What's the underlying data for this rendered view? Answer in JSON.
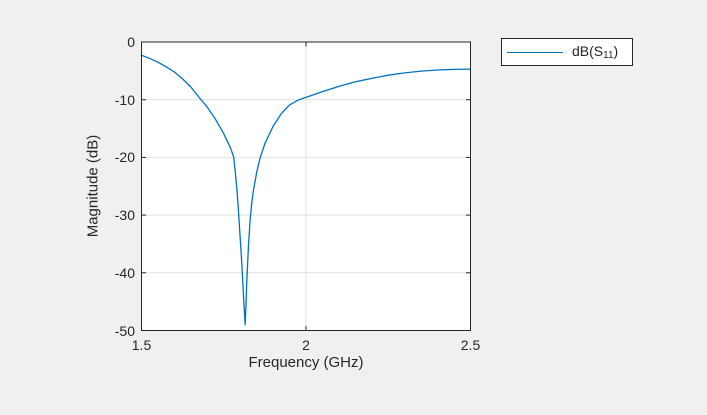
{
  "figure": {
    "kind": "matlab-style-plot"
  },
  "colors": {
    "figure_bg": "#F0F0F0",
    "plot_bg": "#FFFFFF",
    "line": "#0072BD",
    "grid": "#E0E0E0",
    "axis": "#262626",
    "text": "#262626",
    "legend_bg": "#FFFFFF"
  },
  "legend": {
    "label_prefix": "dB(S",
    "label_sub": "11",
    "label_suffix": ")"
  },
  "chart_data": {
    "type": "line",
    "title": "",
    "xlabel": "Frequency (GHz)",
    "ylabel": "Magnitude (dB)",
    "xlim": [
      1.5,
      2.5
    ],
    "ylim": [
      -50,
      0
    ],
    "grid": true,
    "xticks": {
      "values": [
        1.5,
        2,
        2.5
      ],
      "labels": [
        "1.5",
        "2",
        "2.5"
      ]
    },
    "yticks": {
      "values": [
        0,
        -10,
        -20,
        -30,
        -40,
        -50
      ],
      "labels": [
        "0",
        "-10",
        "-20",
        "-30",
        "-40",
        "-50"
      ]
    },
    "legend": {
      "entries": [
        "dB(S11)"
      ],
      "position": "outside-top-right"
    },
    "series": [
      {
        "name": "dB(S11)",
        "color": "#0072BD",
        "x": [
          1.5,
          1.525,
          1.55,
          1.575,
          1.6,
          1.625,
          1.65,
          1.675,
          1.7,
          1.725,
          1.75,
          1.76,
          1.77,
          1.78,
          1.785,
          1.79,
          1.795,
          1.8,
          1.805,
          1.81,
          1.815,
          1.818,
          1.82,
          1.825,
          1.83,
          1.835,
          1.84,
          1.85,
          1.86,
          1.875,
          1.9,
          1.925,
          1.95,
          1.975,
          2.0,
          2.05,
          2.1,
          2.15,
          2.2,
          2.25,
          2.3,
          2.35,
          2.4,
          2.45,
          2.5
        ],
        "y": [
          -2.3,
          -2.85,
          -3.5,
          -4.3,
          -5.2,
          -6.4,
          -7.8,
          -9.6,
          -11.3,
          -13.4,
          -15.9,
          -17.1,
          -18.3,
          -19.9,
          -22.5,
          -25.5,
          -29.5,
          -34.0,
          -38.5,
          -44.0,
          -49.0,
          -45.0,
          -41.5,
          -35.5,
          -31.0,
          -28.0,
          -25.8,
          -22.6,
          -20.2,
          -17.6,
          -14.6,
          -12.4,
          -10.9,
          -10.1,
          -9.6,
          -8.6,
          -7.7,
          -6.9,
          -6.3,
          -5.75,
          -5.35,
          -5.05,
          -4.85,
          -4.75,
          -4.7
        ],
        "resonance_ghz": 1.815,
        "min_db": -49.0
      }
    ]
  }
}
